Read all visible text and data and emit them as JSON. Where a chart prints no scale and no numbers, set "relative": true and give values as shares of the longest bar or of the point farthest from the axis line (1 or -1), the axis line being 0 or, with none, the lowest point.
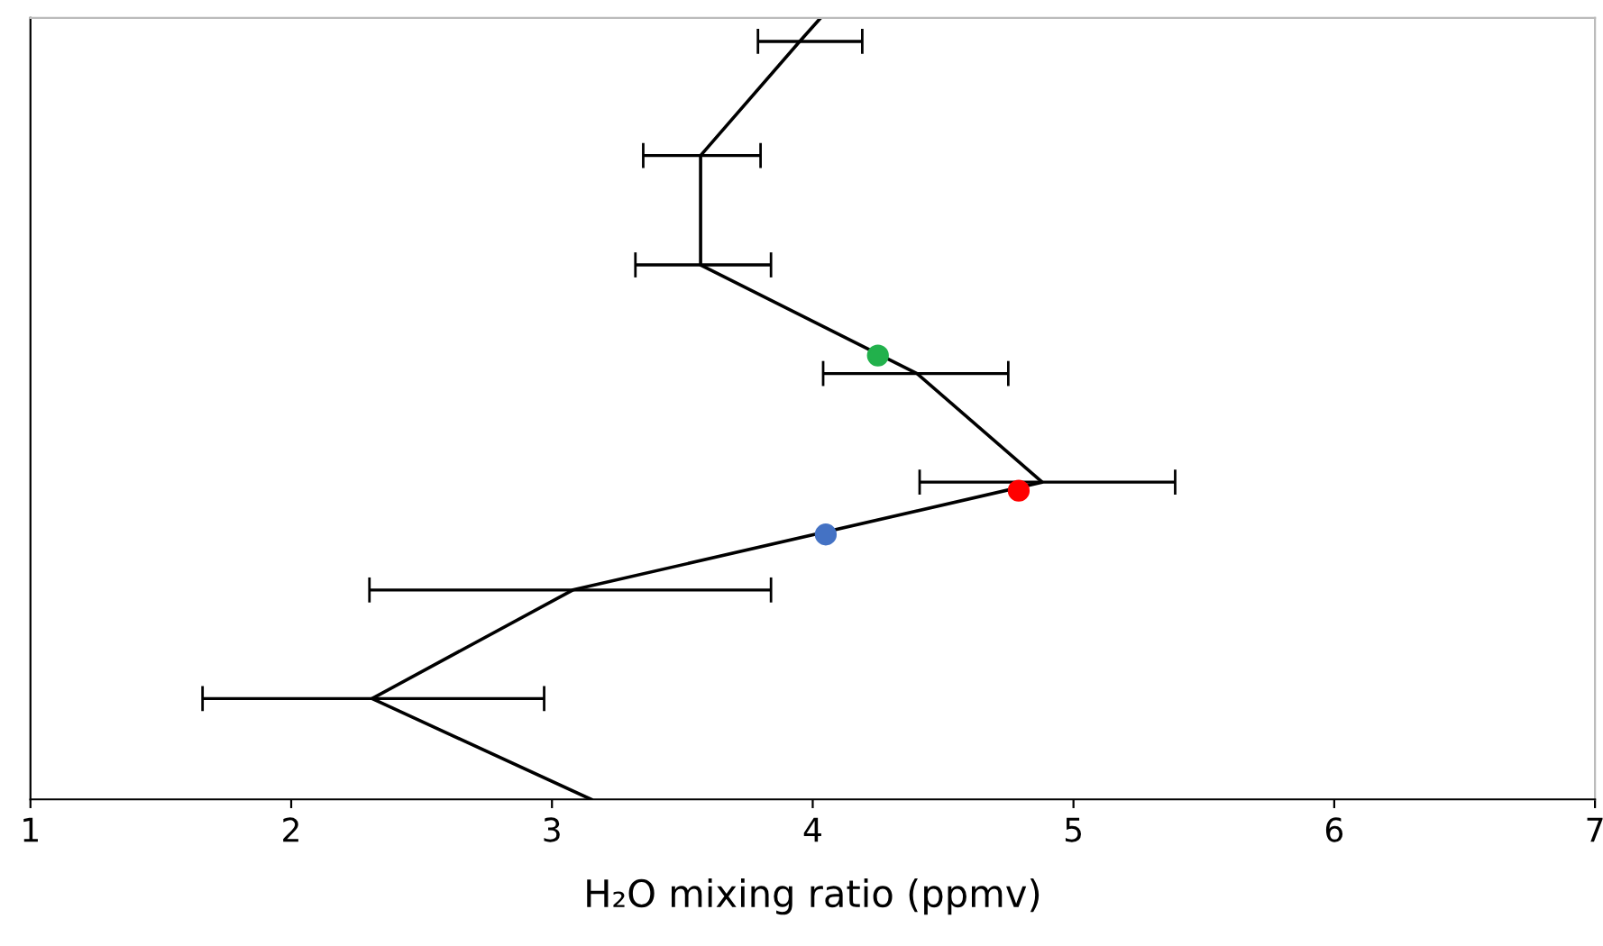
{
  "chart_data": {
    "type": "line",
    "relative": true,
    "xlabel": "H₂O mixing ratio (ppmv)",
    "xlim": [
      1,
      7
    ],
    "xticks": [
      1,
      2,
      3,
      4,
      5,
      6,
      7
    ],
    "grid": false,
    "tick_labels": "x",
    "series": [
      {
        "type": "line",
        "color": "#000000",
        "marker": "none",
        "line_style": "solid",
        "x": [
          4.03,
          3.95,
          3.57,
          3.57,
          4.4,
          4.88,
          3.08,
          2.31,
          3.15
        ],
        "values": [
          1.0,
          0.97,
          0.824,
          0.684,
          0.545,
          0.406,
          0.268,
          0.129,
          0.0
        ],
        "xerrors": [
          null,
          [
            3.79,
            4.19
          ],
          [
            3.35,
            3.8
          ],
          [
            3.32,
            3.84
          ],
          [
            4.04,
            4.75
          ],
          [
            4.41,
            5.39
          ],
          [
            2.3,
            3.84
          ],
          [
            1.66,
            2.97
          ],
          null
        ]
      },
      {
        "type": "scatter",
        "marker": "circle",
        "x": [
          4.25,
          4.79,
          4.05
        ],
        "values": [
          0.568,
          0.395,
          0.339
        ],
        "colors": [
          "#22b14c",
          "#ff0000",
          "#4472c4"
        ]
      }
    ]
  }
}
